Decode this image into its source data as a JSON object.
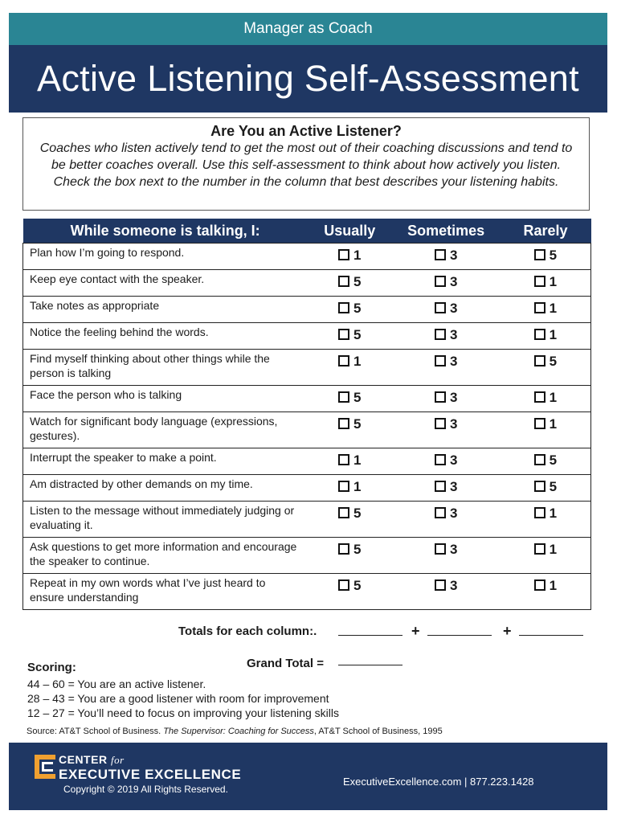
{
  "header": {
    "subtitle": "Manager as Coach",
    "title": "Active Listening Self-Assessment"
  },
  "intro": {
    "heading": "Are You an Active Listener?",
    "body": "Coaches who listen actively tend to get the most out of their coaching discussions and tend to be better coaches overall. Use this self-assessment to think about how actively you listen. Check the box next to the number in the column that best describes your listening habits."
  },
  "table": {
    "headers": [
      "While someone is talking, I:",
      "Usually",
      "Sometimes",
      "Rarely"
    ],
    "rows": [
      {
        "text": "Plan how I’m going to respond.",
        "usually": "1",
        "sometimes": "3",
        "rarely": "5"
      },
      {
        "text": "Keep eye contact with the speaker.",
        "usually": "5",
        "sometimes": "3",
        "rarely": "1"
      },
      {
        "text": "Take notes as appropriate",
        "usually": "5",
        "sometimes": "3",
        "rarely": "1"
      },
      {
        "text": "Notice the feeling behind the words.",
        "usually": "5",
        "sometimes": "3",
        "rarely": "1"
      },
      {
        "text": "Find myself thinking about other things while the person is talking",
        "usually": "1",
        "sometimes": "3",
        "rarely": "5"
      },
      {
        "text": "Face the person who is talking",
        "usually": "5",
        "sometimes": "3",
        "rarely": "1"
      },
      {
        "text": "Watch for significant body language (expressions, gestures).",
        "usually": "5",
        "sometimes": "3",
        "rarely": "1"
      },
      {
        "text": "Interrupt the speaker to make a point.",
        "usually": "1",
        "sometimes": "3",
        "rarely": "5"
      },
      {
        "text": "Am distracted by other demands on my time.",
        "usually": "1",
        "sometimes": "3",
        "rarely": "5"
      },
      {
        "text": "Listen to the message without immediately judging or evaluating it.",
        "usually": "5",
        "sometimes": "3",
        "rarely": "1"
      },
      {
        "text": "Ask questions to get more information and encourage the speaker to continue.",
        "usually": "5",
        "sometimes": "3",
        "rarely": "1"
      },
      {
        "text": "Repeat in my own words what I’ve just heard to ensure understanding",
        "usually": "5",
        "sometimes": "3",
        "rarely": "1"
      }
    ]
  },
  "totals": {
    "label": "Totals for each column:.",
    "plus1": "+",
    "plus2": "+",
    "grand_label": "Grand Total ="
  },
  "scoring": {
    "heading": "Scoring:",
    "lines": [
      "44 – 60 = You are an active listener.",
      "28 – 43 = You are a good listener with room for improvement",
      "12 – 27 = You’ll need to focus on improving your listening skills"
    ]
  },
  "source": {
    "prefix": "Source: AT&T School of Business. ",
    "italic": "The Supervisor: Coaching for Success",
    "suffix": ", AT&T School of Business, 1995"
  },
  "footer": {
    "brand_line1": "CENTER",
    "brand_for": "for",
    "brand_line2": "EXECUTIVE EXCELLENCE",
    "copyright": "Copyright © 2019 All Rights Reserved.",
    "contact": "ExecutiveExcellence.com  |  877.223.1428"
  },
  "colors": {
    "teal": "#2a8594",
    "navy": "#1f3763",
    "logo_orange": "#f0a030"
  }
}
